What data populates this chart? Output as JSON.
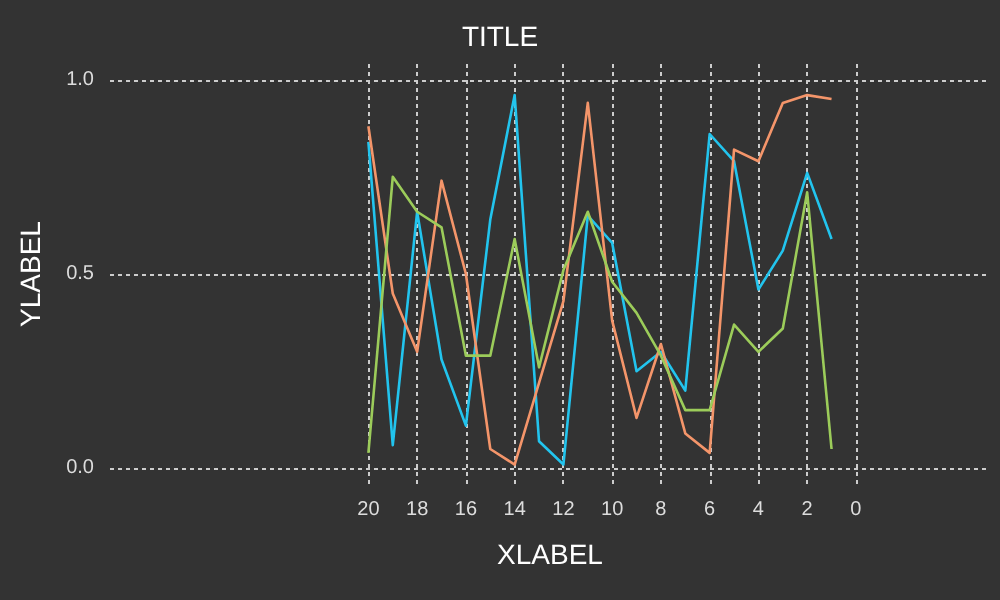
{
  "chart_data": {
    "type": "line",
    "title": "TITLE",
    "xlabel": "XLABEL",
    "ylabel": "YLABEL",
    "x": [
      20,
      19,
      18,
      17,
      16,
      15,
      14,
      13,
      12,
      11,
      10,
      9,
      8,
      7,
      6,
      5,
      4,
      3,
      2,
      1
    ],
    "series": [
      {
        "color": "#22c4ee",
        "values": [
          0.84,
          0.06,
          0.66,
          0.28,
          0.11,
          0.64,
          0.96,
          0.07,
          0.01,
          0.65,
          0.58,
          0.25,
          0.3,
          0.2,
          0.86,
          0.79,
          0.46,
          0.56,
          0.76,
          0.59
        ]
      },
      {
        "color": "#f4956a",
        "values": [
          0.88,
          0.45,
          0.3,
          0.74,
          0.5,
          0.05,
          0.01,
          0.22,
          0.43,
          0.94,
          0.38,
          0.13,
          0.32,
          0.09,
          0.04,
          0.82,
          0.79,
          0.94,
          0.96,
          0.95
        ]
      },
      {
        "color": "#9ccc5a",
        "values": [
          0.04,
          0.75,
          0.66,
          0.62,
          0.29,
          0.29,
          0.59,
          0.26,
          0.51,
          0.66,
          0.48,
          0.4,
          0.29,
          0.15,
          0.15,
          0.37,
          0.3,
          0.36,
          0.71,
          0.05
        ]
      }
    ],
    "xlim": [
      30.6,
      -5.5
    ],
    "xticks": [
      20,
      18,
      16,
      14,
      12,
      10,
      8,
      6,
      4,
      2,
      0
    ],
    "ylim": [
      -0.04,
      1.04
    ],
    "yticks": [
      {
        "value": 0,
        "label": "0.0"
      },
      {
        "value": 0.5,
        "label": "0.5"
      },
      {
        "value": 1,
        "label": "1.0"
      }
    ],
    "grid": true,
    "marker": "none",
    "line_style": "solid"
  }
}
